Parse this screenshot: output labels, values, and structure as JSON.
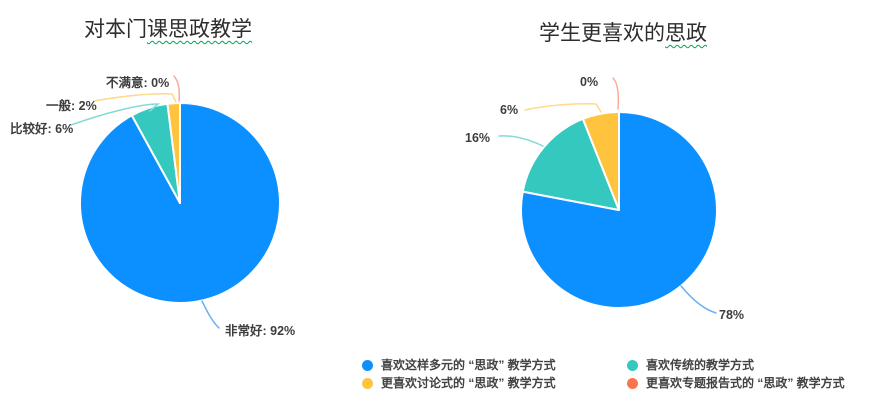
{
  "page": {
    "background": "#ffffff"
  },
  "palette": {
    "blue": "#0C90FF",
    "teal": "#35C8BE",
    "yellow": "#FFC33D",
    "orange": "#F8764D",
    "squiggle_green": "#00A651"
  },
  "chart_data": [
    {
      "type": "pie",
      "title": "对本门课思政教学",
      "title_plain": "对本门",
      "title_underlined": "课思政教学",
      "start_angle": "top",
      "direction": "clockwise",
      "slices": [
        {
          "name": "非常好",
          "value_pct": 92,
          "label": "非常好: 92%",
          "color": "#0C90FF",
          "leader_color": "#6CB1EE"
        },
        {
          "name": "比较好",
          "value_pct": 6,
          "label": "比较好: 6%",
          "color": "#35C8BE",
          "leader_color": "#82DBD4"
        },
        {
          "name": "一般",
          "value_pct": 2,
          "label": "一般: 2%",
          "color": "#FFC33D",
          "leader_color": "#FFD98C"
        },
        {
          "name": "不满意",
          "value_pct": 0,
          "label": "不满意: 0%",
          "color": "#F8764D",
          "leader_color": "#FBAB97"
        }
      ]
    },
    {
      "type": "pie",
      "title": "学生更喜欢的思政",
      "title_plain": "学生更喜欢的",
      "title_underlined": "思政",
      "start_angle": "top",
      "direction": "clockwise",
      "slices": [
        {
          "name": "喜欢这样多元的“思政”教学方式",
          "value_pct": 78,
          "label": "78%",
          "color": "#0C90FF",
          "leader_color": "#6CB1EE"
        },
        {
          "name": "喜欢传统的教学方式",
          "value_pct": 16,
          "label": "16%",
          "color": "#35C8BE",
          "leader_color": "#82DBD4"
        },
        {
          "name": "更喜欢讨论式的“思政”教学方式",
          "value_pct": 6,
          "label": "6%",
          "color": "#FFC33D",
          "leader_color": "#FFD98C"
        },
        {
          "name": "更喜欢专题报告式的“思政”教学方式",
          "value_pct": 0,
          "label": "0%",
          "color": "#F8764D",
          "leader_color": "#FBAB97"
        }
      ]
    }
  ],
  "legend": {
    "position": "bottom-right",
    "items": [
      {
        "label": "喜欢这样多元的 “思政” 教学方式",
        "color": "#0C90FF"
      },
      {
        "label": "更喜欢讨论式的 “思政” 教学方式",
        "color": "#FFC33D"
      },
      {
        "label": "喜欢传统的教学方式",
        "color": "#35C8BE"
      },
      {
        "label": "更喜欢专题报告式的 “思政” 教学方式",
        "color": "#F8764D"
      }
    ]
  }
}
